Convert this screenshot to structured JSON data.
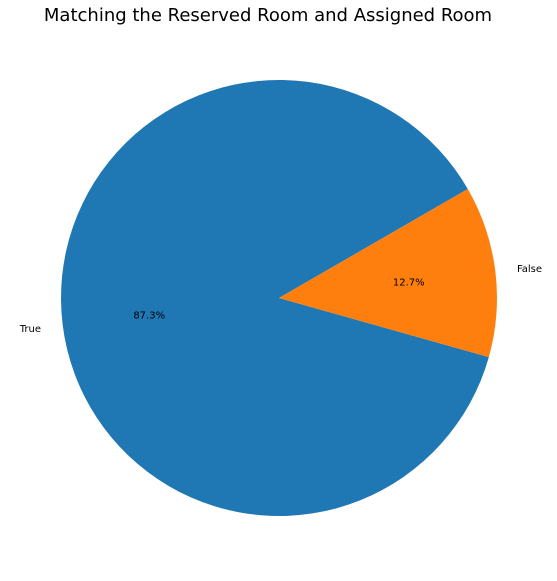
{
  "chart_data": {
    "type": "pie",
    "title": "Matching the Reserved Room and Assigned Room",
    "labels": [
      "True",
      "False"
    ],
    "values": [
      87.3,
      12.7
    ],
    "value_labels": [
      "87.3%",
      "12.7%"
    ],
    "colors": [
      "#1f77b4",
      "#ff7f0e"
    ],
    "legend": "none"
  }
}
